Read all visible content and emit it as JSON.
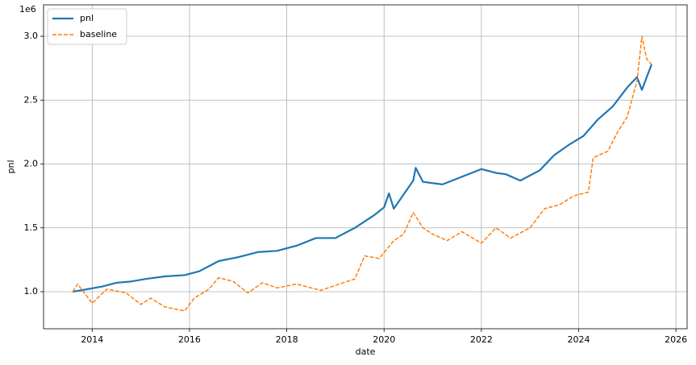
{
  "chart_data": {
    "type": "line",
    "xlabel": "date",
    "ylabel": "pnl",
    "y_offset_label": "1e6",
    "xlim": [
      2013.0,
      2026.23
    ],
    "ylim": [
      710000,
      3246000
    ],
    "xticks": [
      2014,
      2016,
      2018,
      2020,
      2022,
      2024,
      2026
    ],
    "yticks": [
      {
        "value": 1000000,
        "label": "1.0"
      },
      {
        "value": 1500000,
        "label": "1.5"
      },
      {
        "value": 2000000,
        "label": "2.0"
      },
      {
        "value": 2500000,
        "label": "2.5"
      },
      {
        "value": 3000000,
        "label": "3.0"
      }
    ],
    "grid": true,
    "legend": "upper-left",
    "series": [
      {
        "name": "pnl",
        "color": "#1f77b4",
        "style": "solid",
        "x": [
          2013.6,
          2013.9,
          2014.2,
          2014.5,
          2014.8,
          2015.1,
          2015.5,
          2015.9,
          2016.2,
          2016.6,
          2017.0,
          2017.4,
          2017.8,
          2018.2,
          2018.6,
          2019.0,
          2019.4,
          2019.8,
          2020.0,
          2020.1,
          2020.2,
          2020.4,
          2020.6,
          2020.65,
          2020.8,
          2021.2,
          2021.6,
          2022.0,
          2022.3,
          2022.5,
          2022.8,
          2023.2,
          2023.5,
          2023.8,
          2024.1,
          2024.4,
          2024.7,
          2025.0,
          2025.2,
          2025.3,
          2025.5
        ],
        "values": [
          1000000,
          1020000,
          1040000,
          1070000,
          1080000,
          1100000,
          1120000,
          1130000,
          1160000,
          1240000,
          1270000,
          1310000,
          1320000,
          1360000,
          1420000,
          1420000,
          1500000,
          1600000,
          1660000,
          1770000,
          1650000,
          1760000,
          1870000,
          1970000,
          1860000,
          1840000,
          1900000,
          1960000,
          1930000,
          1920000,
          1870000,
          1950000,
          2070000,
          2150000,
          2220000,
          2350000,
          2450000,
          2600000,
          2680000,
          2580000,
          2780000
        ]
      },
      {
        "name": "baseline",
        "color": "#ff7f0e",
        "style": "dashed",
        "x": [
          2013.6,
          2013.7,
          2014.0,
          2014.3,
          2014.7,
          2015.0,
          2015.2,
          2015.5,
          2015.9,
          2016.1,
          2016.4,
          2016.6,
          2016.9,
          2017.2,
          2017.5,
          2017.8,
          2018.2,
          2018.7,
          2019.0,
          2019.4,
          2019.6,
          2019.9,
          2020.2,
          2020.4,
          2020.6,
          2020.8,
          2021.0,
          2021.3,
          2021.6,
          2022.0,
          2022.3,
          2022.6,
          2023.0,
          2023.3,
          2023.6,
          2023.9,
          2024.2,
          2024.3,
          2024.6,
          2024.8,
          2025.0,
          2025.2,
          2025.3,
          2025.4,
          2025.5
        ],
        "values": [
          1000000,
          1060000,
          910000,
          1020000,
          990000,
          900000,
          950000,
          880000,
          850000,
          950000,
          1020000,
          1110000,
          1080000,
          990000,
          1070000,
          1030000,
          1060000,
          1010000,
          1050000,
          1100000,
          1280000,
          1260000,
          1400000,
          1450000,
          1620000,
          1500000,
          1450000,
          1400000,
          1470000,
          1380000,
          1500000,
          1420000,
          1500000,
          1650000,
          1680000,
          1750000,
          1780000,
          2050000,
          2100000,
          2250000,
          2370000,
          2650000,
          3000000,
          2820000,
          2780000
        ]
      }
    ]
  }
}
